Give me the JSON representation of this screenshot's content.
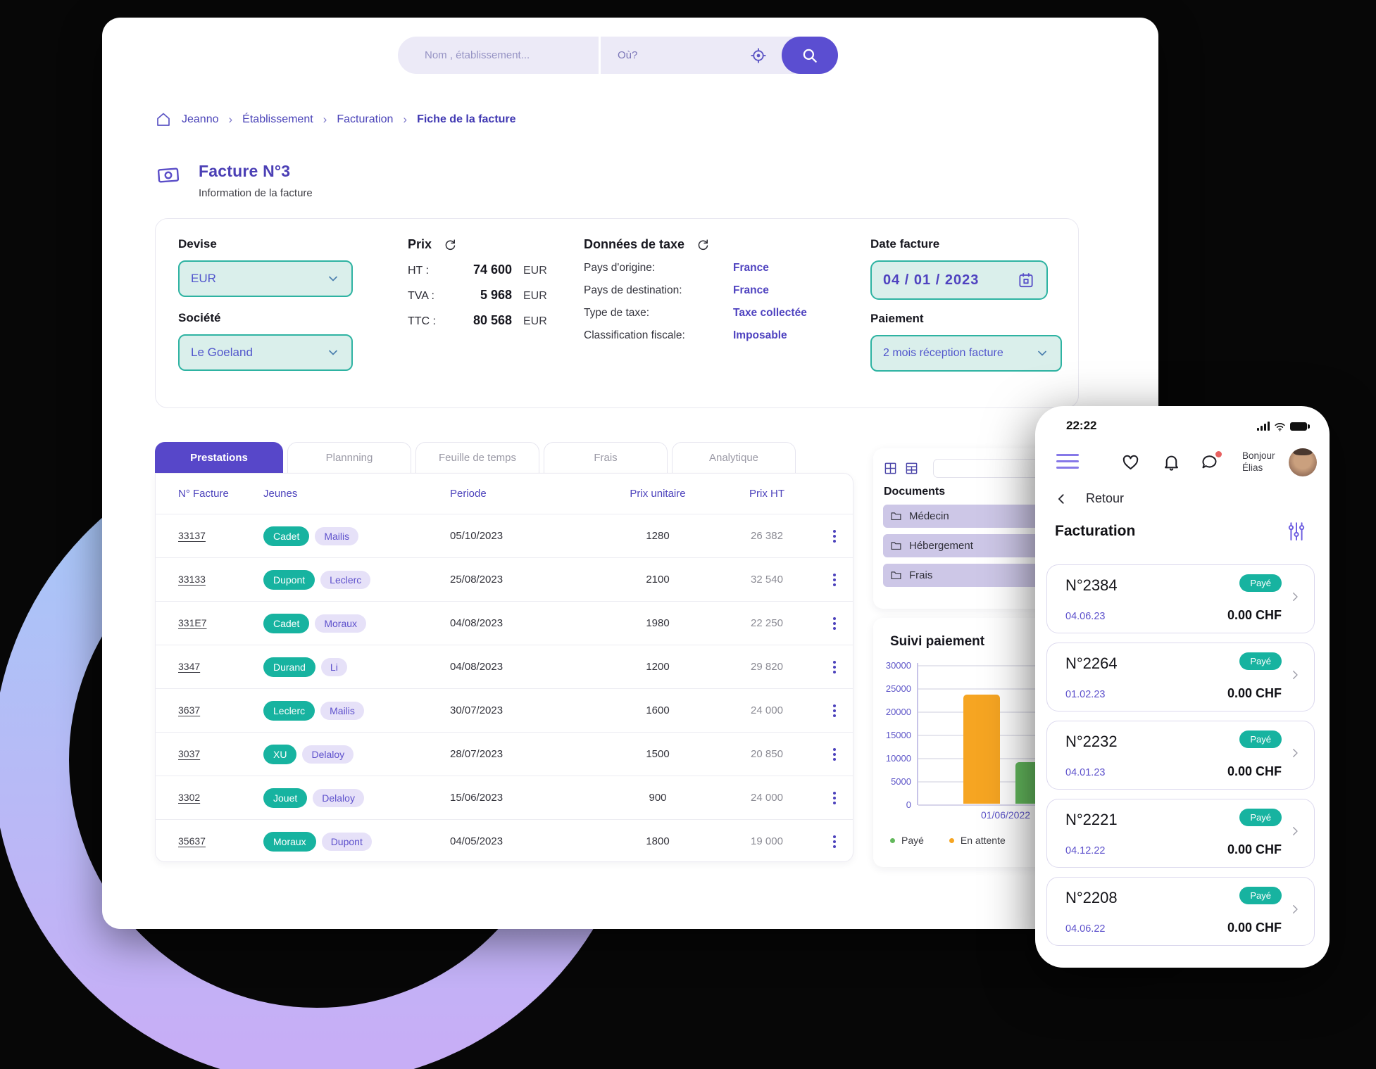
{
  "colors": {
    "accent_purple": "#5b4ed1",
    "teal": "#17b3a0",
    "teal_border": "#2eb3a2",
    "lavender": "#e6e1f8",
    "orange": "#f6a522",
    "green": "#63b85c",
    "dark_bg": "#070707"
  },
  "search": {
    "name_placeholder": "Nom , établissement...",
    "where_placeholder": "Où?"
  },
  "breadcrumb": {
    "items": [
      "Jeanno",
      "Établissement",
      "Facturation"
    ],
    "current": "Fiche de la facture"
  },
  "page": {
    "title": "Facture N°3",
    "subtitle": "Information de la facture"
  },
  "invoice_info": {
    "devise_label": "Devise",
    "devise_value": "EUR",
    "societe_label": "Société",
    "societe_value": "Le Goeland",
    "prix_label": "Prix",
    "prix_rows": [
      {
        "k": "HT :",
        "v": "74 600",
        "cur": "EUR"
      },
      {
        "k": "TVA :",
        "v": "5 968",
        "cur": "EUR"
      },
      {
        "k": "TTC :",
        "v": "80 568",
        "cur": "EUR"
      }
    ],
    "taxe_label": "Données de taxe",
    "taxe_rows": [
      {
        "k": "Pays d'origine:",
        "v": "France"
      },
      {
        "k": "Pays de destination:",
        "v": "France"
      },
      {
        "k": "Type de taxe:",
        "v": "Taxe collectée"
      },
      {
        "k": "Classification fiscale:",
        "v": "Imposable"
      }
    ],
    "date_label": "Date facture",
    "date_value": "04 / 01 / 2023",
    "paiement_label": "Paiement",
    "paiement_value": "2 mois réception facture"
  },
  "tabs": [
    {
      "label": "Prestations",
      "active": true
    },
    {
      "label": "Plannning",
      "active": false
    },
    {
      "label": "Feuille de temps",
      "active": false
    },
    {
      "label": "Frais",
      "active": false
    },
    {
      "label": "Analytique",
      "active": false
    }
  ],
  "table": {
    "headers": [
      "N° Facture",
      "Jeunes",
      "Periode",
      "Prix unitaire",
      "Prix HT"
    ],
    "rows": [
      {
        "num": "33137",
        "tags": [
          "Cadet",
          "Mailis"
        ],
        "periode": "05/10/2023",
        "prix_unitaire": "1280",
        "prix_ht": "26 382"
      },
      {
        "num": "33133",
        "tags": [
          "Dupont",
          "Leclerc"
        ],
        "periode": "25/08/2023",
        "prix_unitaire": "2100",
        "prix_ht": "32 540"
      },
      {
        "num": "331E7",
        "tags": [
          "Cadet",
          "Moraux"
        ],
        "periode": "04/08/2023",
        "prix_unitaire": "1980",
        "prix_ht": "22 250"
      },
      {
        "num": "3347",
        "tags": [
          "Durand",
          "Li"
        ],
        "periode": "04/08/2023",
        "prix_unitaire": "1200",
        "prix_ht": "29 820"
      },
      {
        "num": "3637",
        "tags": [
          "Leclerc",
          "Mailis"
        ],
        "periode": "30/07/2023",
        "prix_unitaire": "1600",
        "prix_ht": "24 000"
      },
      {
        "num": "3037",
        "tags": [
          "XU",
          "Delaloy"
        ],
        "periode": "28/07/2023",
        "prix_unitaire": "1500",
        "prix_ht": "20 850"
      },
      {
        "num": "3302",
        "tags": [
          "Jouet",
          "Delaloy"
        ],
        "periode": "15/06/2023",
        "prix_unitaire": "900",
        "prix_ht": "24 000"
      },
      {
        "num": "35637",
        "tags": [
          "Moraux",
          "Dupont"
        ],
        "periode": "04/05/2023",
        "prix_unitaire": "1800",
        "prix_ht": "19 000"
      }
    ]
  },
  "documents": {
    "title": "Documents",
    "items": [
      "Médecin",
      "Hébergement",
      "Frais"
    ]
  },
  "chart_data": {
    "type": "bar",
    "title": "Suivi paiement",
    "categories": [
      "01/06/2022"
    ],
    "series": [
      {
        "name": "Payé",
        "color": "#63b85c",
        "values": [
          9000
        ]
      },
      {
        "name": "En attente",
        "color": "#f6a522",
        "values": [
          23500
        ]
      }
    ],
    "ylim": [
      0,
      30000
    ],
    "yticks": [
      30000,
      25000,
      20000,
      15000,
      10000,
      5000,
      0
    ],
    "grid": true,
    "legend_position": "bottom"
  },
  "phone": {
    "time": "22:22",
    "greeting": {
      "line1": "Bonjour",
      "line2": "Élias"
    },
    "back_label": "Retour",
    "title": "Facturation",
    "invoices": [
      {
        "number": "N°2384",
        "status": "Payé",
        "date": "04.06.23",
        "amount": "0.00 CHF"
      },
      {
        "number": "N°2264",
        "status": "Payé",
        "date": "01.02.23",
        "amount": "0.00 CHF"
      },
      {
        "number": "N°2232",
        "status": "Payé",
        "date": "04.01.23",
        "amount": "0.00 CHF"
      },
      {
        "number": "N°2221",
        "status": "Payé",
        "date": "04.12.22",
        "amount": "0.00 CHF"
      },
      {
        "number": "N°2208",
        "status": "Payé",
        "date": "04.06.22",
        "amount": "0.00 CHF"
      }
    ]
  }
}
